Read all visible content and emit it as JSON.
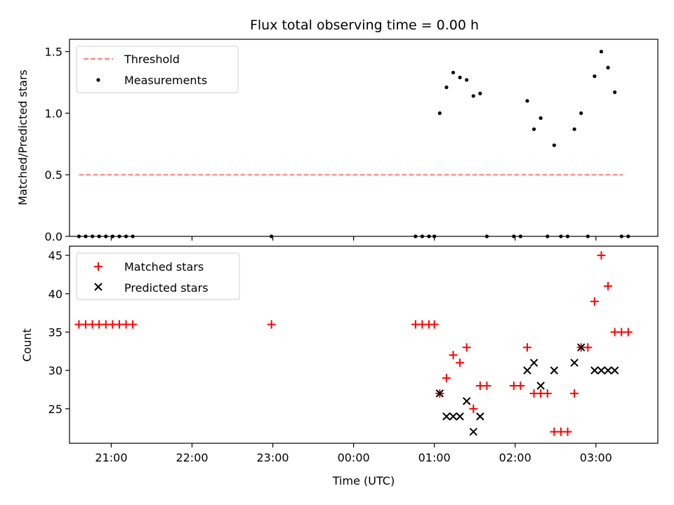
{
  "chart_data": [
    {
      "type": "scatter",
      "title": "Flux total observing time = 0.00 h",
      "xlabel": "",
      "ylabel": "Matched/Predicted stars",
      "xlim": [
        "20:29",
        "03:46"
      ],
      "ylim": [
        0,
        1.6
      ],
      "yticks": [
        0.0,
        0.5,
        1.0,
        1.5
      ],
      "ytick_labels": [
        "0.0",
        "0.5",
        "1.0",
        "1.5"
      ],
      "legend_position": "top-left",
      "threshold": {
        "name": "Threshold",
        "value": 0.5,
        "x": [
          "20:36",
          "03:20"
        ],
        "color": "#ff7f7f"
      },
      "series": [
        {
          "name": "Measurements",
          "color": "#000000",
          "points": [
            [
              "20:36",
              0
            ],
            [
              "20:41",
              0
            ],
            [
              "20:46",
              0
            ],
            [
              "20:51",
              0
            ],
            [
              "20:56",
              0
            ],
            [
              "21:01",
              0
            ],
            [
              "21:06",
              0
            ],
            [
              "21:11",
              0
            ],
            [
              "21:16",
              0
            ],
            [
              "22:59",
              0
            ],
            [
              "00:46",
              0
            ],
            [
              "00:51",
              0
            ],
            [
              "00:56",
              0
            ],
            [
              "01:00",
              0
            ],
            [
              "01:04",
              1.0
            ],
            [
              "01:09",
              1.21
            ],
            [
              "01:14",
              1.33
            ],
            [
              "01:19",
              1.29
            ],
            [
              "01:24",
              1.27
            ],
            [
              "01:29",
              1.14
            ],
            [
              "01:34",
              1.16
            ],
            [
              "01:39",
              0
            ],
            [
              "01:59",
              0
            ],
            [
              "02:04",
              0
            ],
            [
              "02:09",
              1.1
            ],
            [
              "02:14",
              0.87
            ],
            [
              "02:19",
              0.96
            ],
            [
              "02:24",
              0
            ],
            [
              "02:29",
              0.74
            ],
            [
              "02:34",
              0
            ],
            [
              "02:39",
              0
            ],
            [
              "02:44",
              0.87
            ],
            [
              "02:49",
              1.0
            ],
            [
              "02:54",
              0
            ],
            [
              "02:59",
              1.3
            ],
            [
              "03:04",
              1.5
            ],
            [
              "03:09",
              1.37
            ],
            [
              "03:14",
              1.17
            ],
            [
              "03:19",
              0
            ],
            [
              "03:24",
              0
            ]
          ]
        }
      ]
    },
    {
      "type": "scatter",
      "title": "",
      "xlabel": "Time (UTC)",
      "ylabel": "Count",
      "xlim": [
        "20:29",
        "03:46"
      ],
      "ylim": [
        20.5,
        46.2
      ],
      "yticks": [
        25,
        30,
        35,
        40,
        45
      ],
      "xticks": [
        "21:00",
        "22:00",
        "23:00",
        "00:00",
        "01:00",
        "02:00",
        "03:00"
      ],
      "legend_position": "top-left",
      "series": [
        {
          "name": "Matched stars",
          "color": "#ff0000",
          "marker": "plus",
          "points": [
            [
              "20:36",
              36
            ],
            [
              "20:41",
              36
            ],
            [
              "20:46",
              36
            ],
            [
              "20:51",
              36
            ],
            [
              "20:56",
              36
            ],
            [
              "21:01",
              36
            ],
            [
              "21:06",
              36
            ],
            [
              "21:11",
              36
            ],
            [
              "21:16",
              36
            ],
            [
              "22:59",
              36
            ],
            [
              "00:46",
              36
            ],
            [
              "00:51",
              36
            ],
            [
              "00:56",
              36
            ],
            [
              "01:00",
              36
            ],
            [
              "01:04",
              27
            ],
            [
              "01:09",
              29
            ],
            [
              "01:14",
              32
            ],
            [
              "01:19",
              31
            ],
            [
              "01:24",
              33
            ],
            [
              "01:29",
              25
            ],
            [
              "01:34",
              28
            ],
            [
              "01:39",
              28
            ],
            [
              "01:59",
              28
            ],
            [
              "02:04",
              28
            ],
            [
              "02:09",
              33
            ],
            [
              "02:14",
              27
            ],
            [
              "02:19",
              27
            ],
            [
              "02:24",
              27
            ],
            [
              "02:29",
              22
            ],
            [
              "02:34",
              22
            ],
            [
              "02:39",
              22
            ],
            [
              "02:44",
              27
            ],
            [
              "02:49",
              33
            ],
            [
              "02:54",
              33
            ],
            [
              "02:59",
              39
            ],
            [
              "03:04",
              45
            ],
            [
              "03:09",
              41
            ],
            [
              "03:14",
              35
            ],
            [
              "03:19",
              35
            ],
            [
              "03:24",
              35
            ]
          ]
        },
        {
          "name": "Predicted stars",
          "color": "#000000",
          "marker": "x",
          "points": [
            [
              "01:04",
              27
            ],
            [
              "01:09",
              24
            ],
            [
              "01:14",
              24
            ],
            [
              "01:19",
              24
            ],
            [
              "01:24",
              26
            ],
            [
              "01:29",
              22
            ],
            [
              "01:34",
              24
            ],
            [
              "02:09",
              30
            ],
            [
              "02:14",
              31
            ],
            [
              "02:19",
              28
            ],
            [
              "02:29",
              30
            ],
            [
              "02:44",
              31
            ],
            [
              "02:49",
              33
            ],
            [
              "02:59",
              30
            ],
            [
              "03:04",
              30
            ],
            [
              "03:09",
              30
            ],
            [
              "03:14",
              30
            ]
          ]
        }
      ]
    }
  ]
}
